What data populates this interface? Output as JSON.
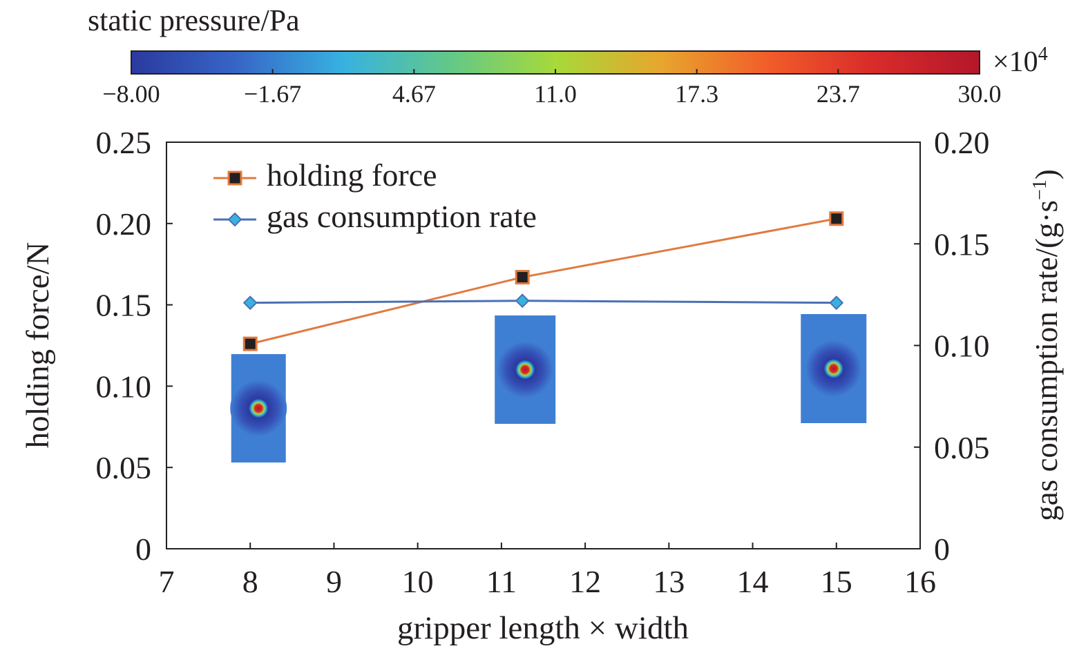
{
  "colorbar": {
    "title": "static pressure/Pa",
    "multiplier": "×10",
    "multiplier_exp": "4",
    "tick_labels": [
      "−8.00",
      "−1.67",
      "4.67",
      "11.0",
      "17.3",
      "23.7",
      "30.0"
    ],
    "range": [
      -8.0,
      30.0
    ],
    "colormap": [
      "#2b3a9f",
      "#3766c7",
      "#37b2e0",
      "#62c889",
      "#a7d93a",
      "#e7a52e",
      "#f25d2a",
      "#d92b2a",
      "#b3172a"
    ]
  },
  "chart_data": {
    "type": "line",
    "xlabel": "gripper length × width",
    "ylabel": "holding force/N",
    "y2label": "gas consumption rate/(g·s",
    "y2label_exp": "−1",
    "y2label_close": ")",
    "xlim": [
      7,
      16
    ],
    "ylim": [
      0,
      0.25
    ],
    "y2lim": [
      0,
      0.2
    ],
    "x_ticks": [
      "7",
      "8",
      "9",
      "10",
      "11",
      "12",
      "13",
      "14",
      "15",
      "16"
    ],
    "y_ticks": [
      "0",
      "0.05",
      "0.10",
      "0.15",
      "0.20",
      "0.25"
    ],
    "y2_ticks": [
      "0",
      "0.05",
      "0.10",
      "0.15",
      "0.20"
    ],
    "legend_position": "top-left",
    "grid": false,
    "series": [
      {
        "name": "holding force",
        "axis": "left",
        "color": "#e07a3f",
        "marker": "square",
        "x": [
          8,
          11.25,
          15
        ],
        "y": [
          0.126,
          0.167,
          0.203
        ]
      },
      {
        "name": "gas consumption rate",
        "axis": "right",
        "color": "#4a6fb5",
        "marker": "diamond",
        "x": [
          8,
          11.25,
          15
        ],
        "y": [
          0.121,
          0.122,
          0.121
        ]
      }
    ],
    "inset_pressure_maps": [
      {
        "x": 8,
        "label": ""
      },
      {
        "x": 11.25,
        "label": ""
      },
      {
        "x": 15,
        "label": ""
      }
    ]
  }
}
